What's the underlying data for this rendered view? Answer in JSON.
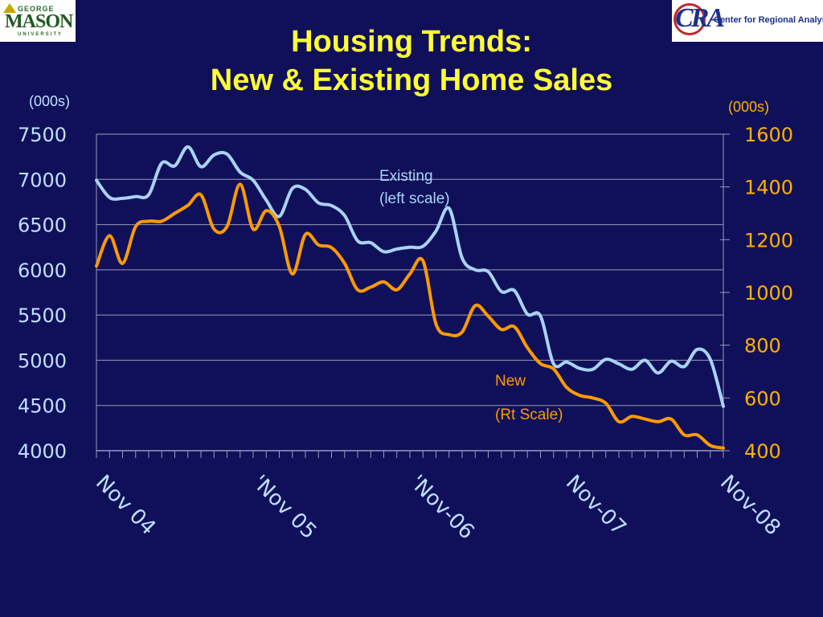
{
  "logos": {
    "left": {
      "top": "GEORGE",
      "main": "MASON",
      "bottom": "UNIVERSITY"
    },
    "right": {
      "mark": "CRA",
      "text": "Center for Regional Analysis"
    }
  },
  "title_line1": "Housing Trends:",
  "title_line2": "New & Existing Home Sales",
  "colors": {
    "background": "#10105a",
    "title": "#ffff33",
    "existing": "#a9d3f5",
    "new": "#ff9a00",
    "grid": "#9a9ab8",
    "left_axis_text": "#bfe0ff",
    "right_axis_text": "#ffb000"
  },
  "chart_data": {
    "type": "line",
    "title": "Housing Trends: New & Existing Home Sales",
    "left_axis": {
      "unit_label": "(000s)",
      "min": 4000,
      "max": 7500,
      "ticks": [
        7500,
        7000,
        6500,
        6000,
        5500,
        5000,
        4500,
        4000
      ]
    },
    "right_axis": {
      "unit_label": "(000s)",
      "min": 400,
      "max": 1600,
      "ticks": [
        1600,
        1400,
        1200,
        1000,
        800,
        600,
        400
      ]
    },
    "x_tick_labels": [
      "Nov 04",
      "'Nov 05",
      "'Nov-06",
      "Nov-07",
      "Nov-08"
    ],
    "grid": true,
    "series": [
      {
        "name": "Existing",
        "axis": "left",
        "values": [
          6990,
          6800,
          6790,
          6810,
          6830,
          7180,
          7150,
          7360,
          7140,
          7270,
          7280,
          7080,
          6990,
          6770,
          6590,
          6900,
          6890,
          6740,
          6710,
          6600,
          6320,
          6300,
          6200,
          6230,
          6250,
          6260,
          6430,
          6680,
          6130,
          6000,
          5980,
          5760,
          5770,
          5510,
          5490,
          4960,
          4980,
          4910,
          4900,
          5010,
          4960,
          4900,
          5000,
          4860,
          4990,
          4930,
          5120,
          5010,
          4490
        ]
      },
      {
        "name": "New",
        "axis": "right",
        "values": [
          1100,
          1215,
          1110,
          1250,
          1270,
          1270,
          1300,
          1330,
          1370,
          1240,
          1250,
          1410,
          1240,
          1310,
          1250,
          1070,
          1220,
          1180,
          1170,
          1110,
          1010,
          1020,
          1040,
          1010,
          1070,
          1120,
          880,
          840,
          850,
          950,
          910,
          860,
          870,
          790,
          730,
          710,
          640,
          610,
          600,
          580,
          510,
          530,
          520,
          510,
          520,
          460,
          460,
          420,
          410
        ]
      }
    ],
    "annotations": [
      {
        "lines": [
          "Existing",
          "(left scale)"
        ],
        "series": "Existing"
      },
      {
        "lines": [
          "New",
          "(Rt Scale)"
        ],
        "series": "New"
      }
    ]
  }
}
